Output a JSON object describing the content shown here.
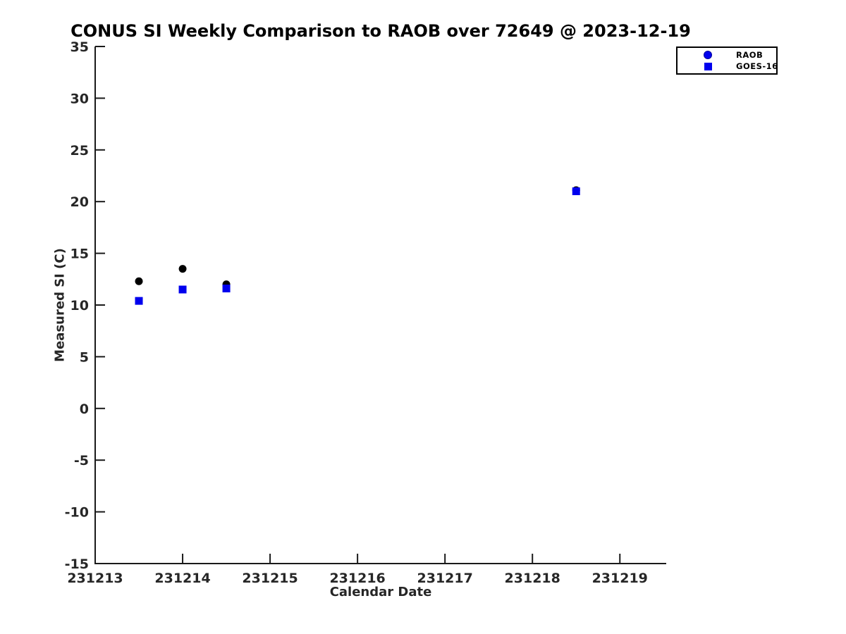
{
  "chart_data": {
    "type": "scatter",
    "title": "CONUS SI Weekly Comparison to RAOB over 72649 @ 2023-12-19",
    "xlabel": "Calendar Date",
    "ylabel": "Measured SI (C)",
    "xlim": [
      231213,
      231219.53
    ],
    "ylim": [
      -15,
      35
    ],
    "x_ticks": [
      231213,
      231214,
      231215,
      231216,
      231217,
      231218,
      231219
    ],
    "y_ticks": [
      35,
      30,
      25,
      20,
      15,
      10,
      5,
      0,
      -5,
      -10,
      -15
    ],
    "grid": false,
    "legend_position": "top-right",
    "series": [
      {
        "name": "RAOB",
        "marker": "circle",
        "plot_color": "#000000",
        "legend_color": "#0000ee",
        "points": [
          [
            231213.5,
            12.3
          ],
          [
            231214.0,
            13.5
          ],
          [
            231214.5,
            12.0
          ],
          [
            231218.5,
            21.1
          ]
        ]
      },
      {
        "name": "GOES-16",
        "marker": "square",
        "plot_color": "#0000ee",
        "legend_color": "#0000ee",
        "points": [
          [
            231213.5,
            10.4
          ],
          [
            231214.0,
            11.5
          ],
          [
            231214.5,
            11.6
          ],
          [
            231218.5,
            21.0
          ]
        ]
      }
    ],
    "colors": {
      "background": "#ffffff",
      "axis_line": "#1a1a1a",
      "tick_label": "#262626",
      "title": "#000000"
    }
  }
}
